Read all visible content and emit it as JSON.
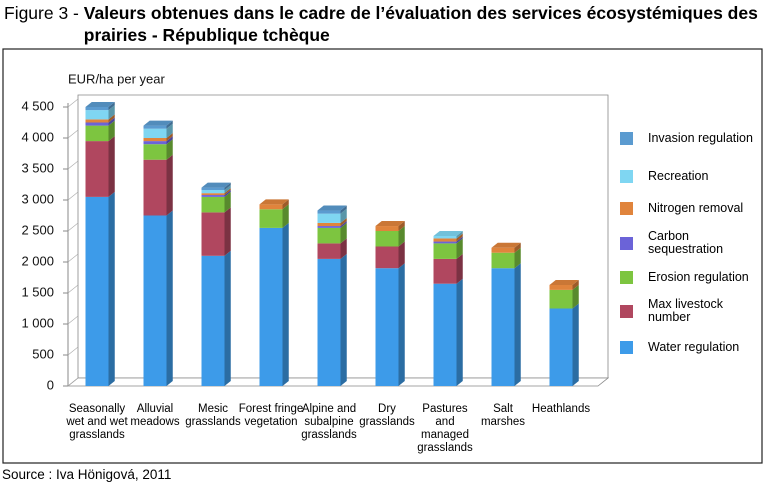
{
  "chart_data": {
    "type": "stacked-bar-3d",
    "title_prefix": "Figure 3 -",
    "title": "Valeurs obtenues dans le cadre de l’évaluation des services écosystémiques des prairies - République tchèque",
    "source": "Source : Iva Hönigová, 2011",
    "ylabel": "EUR/ha per year",
    "categories": [
      "Seasonally wet and wet grasslands",
      "Alluvial meadows",
      "Mesic grasslands",
      "Forest fringe vegetation",
      "Alpine and subalpine grasslands",
      "Dry grasslands",
      "Pastures and managed grasslands",
      "Salt marshes",
      "Heathlands"
    ],
    "series": [
      {
        "name": "Water regulation",
        "color": "#3d9be9",
        "values": [
          3050,
          2750,
          2100,
          2550,
          2050,
          1900,
          1650,
          1900,
          1250
        ]
      },
      {
        "name": "Max livestock number",
        "color": "#b0475f",
        "values": [
          900,
          900,
          700,
          0,
          250,
          350,
          400,
          0,
          0
        ]
      },
      {
        "name": "Erosion regulation",
        "color": "#7dc540",
        "values": [
          250,
          250,
          250,
          300,
          250,
          250,
          250,
          250,
          300
        ]
      },
      {
        "name": "Carbon sequestration",
        "color": "#6b63d8",
        "values": [
          50,
          50,
          30,
          0,
          30,
          0,
          30,
          0,
          0
        ]
      },
      {
        "name": "Nitrogen removal",
        "color": "#e0843c",
        "values": [
          50,
          50,
          30,
          80,
          50,
          80,
          50,
          80,
          80
        ]
      },
      {
        "name": "Recreation",
        "color": "#7fd6f2",
        "values": [
          150,
          150,
          50,
          0,
          150,
          0,
          40,
          0,
          0
        ]
      },
      {
        "name": "Invasion regulation",
        "color": "#5b9bd0",
        "values": [
          50,
          50,
          40,
          0,
          50,
          0,
          0,
          0,
          0
        ]
      }
    ],
    "ylim": [
      0,
      4500
    ],
    "yticks": [
      0,
      500,
      {
        "value": 1000,
        "label": "1 000"
      },
      {
        "value": 1500,
        "label": "1 500"
      },
      {
        "value": 2000,
        "label": "2 000"
      },
      {
        "value": 2500,
        "label": "2 500"
      },
      {
        "value": 3000,
        "label": "3 000"
      },
      {
        "value": 3500,
        "label": "3 500"
      },
      {
        "value": 4000,
        "label": "4 000"
      },
      {
        "value": 4500,
        "label": "4 500"
      }
    ],
    "legend": "right"
  }
}
